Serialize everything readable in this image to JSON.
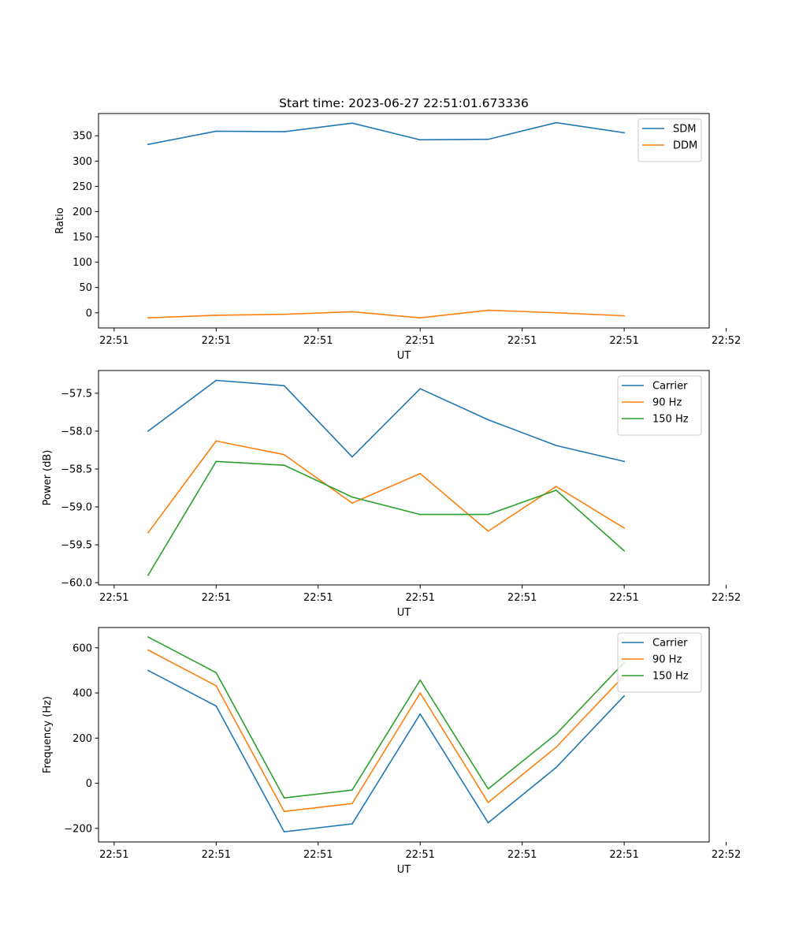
{
  "figure": {
    "title": "Start time: 2023-06-27 22:51:01.673336"
  },
  "chart_data": [
    {
      "type": "line",
      "title": "Start time: 2023-06-27 22:51:01.673336",
      "xlabel": "UT",
      "ylabel": "Ratio",
      "x": [
        1,
        2,
        3,
        4,
        5,
        6,
        7,
        8
      ],
      "xlim": [
        0.27,
        9.25
      ],
      "x_ticks": [
        0.5,
        2.0,
        3.5,
        5.0,
        6.5,
        8.0,
        9.5
      ],
      "x_tick_labels": [
        "22:51",
        "22:51",
        "22:51",
        "22:51",
        "22:51",
        "22:51",
        "22:52"
      ],
      "ylim": [
        -30,
        394
      ],
      "y_ticks": [
        0,
        50,
        100,
        150,
        200,
        250,
        300,
        350
      ],
      "y_tick_labels": [
        "0",
        "50",
        "100",
        "150",
        "200",
        "250",
        "300",
        "350"
      ],
      "legend": "upper right",
      "series": [
        {
          "name": "SDM",
          "color": "#1f77b4",
          "values": [
            333,
            359,
            358,
            375,
            342,
            343,
            376,
            356
          ]
        },
        {
          "name": "DDM",
          "color": "#ff7f0e",
          "values": [
            -10,
            -5,
            -3,
            2,
            -10,
            5,
            0,
            -6
          ]
        }
      ]
    },
    {
      "type": "line",
      "xlabel": "UT",
      "ylabel": "Power (dB)",
      "x": [
        1,
        2,
        3,
        4,
        5,
        6,
        7,
        8
      ],
      "xlim": [
        0.27,
        9.25
      ],
      "x_ticks": [
        0.5,
        2.0,
        3.5,
        5.0,
        6.5,
        8.0,
        9.5
      ],
      "x_tick_labels": [
        "22:51",
        "22:51",
        "22:51",
        "22:51",
        "22:51",
        "22:51",
        "22:52"
      ],
      "ylim": [
        -60.03,
        -57.2
      ],
      "y_ticks": [
        -60.0,
        -59.5,
        -59.0,
        -58.5,
        -58.0,
        -57.5
      ],
      "y_tick_labels": [
        "−60.0",
        "−59.5",
        "−59.0",
        "−58.5",
        "−58.0",
        "−57.5"
      ],
      "legend": "upper right",
      "series": [
        {
          "name": "Carrier",
          "color": "#1f77b4",
          "values": [
            -58.0,
            -57.33,
            -57.4,
            -58.34,
            -57.44,
            -57.85,
            -58.19,
            -58.4
          ]
        },
        {
          "name": "90 Hz",
          "color": "#ff7f0e",
          "values": [
            -59.34,
            -58.13,
            -58.31,
            -58.95,
            -58.56,
            -59.32,
            -58.73,
            -59.28
          ]
        },
        {
          "name": "150 Hz",
          "color": "#2ca02c",
          "values": [
            -59.9,
            -58.4,
            -58.45,
            -58.87,
            -59.1,
            -59.1,
            -58.78,
            -59.58
          ]
        }
      ]
    },
    {
      "type": "line",
      "xlabel": "UT",
      "ylabel": "Frequency (Hz)",
      "x": [
        1,
        2,
        3,
        4,
        5,
        6,
        7,
        8
      ],
      "xlim": [
        0.27,
        9.25
      ],
      "x_ticks": [
        0.5,
        2.0,
        3.5,
        5.0,
        6.5,
        8.0,
        9.5
      ],
      "x_tick_labels": [
        "22:51",
        "22:51",
        "22:51",
        "22:51",
        "22:51",
        "22:51",
        "22:52"
      ],
      "ylim": [
        -260,
        690
      ],
      "y_ticks": [
        -200,
        0,
        200,
        400,
        600
      ],
      "y_tick_labels": [
        "−200",
        "0",
        "200",
        "400",
        "600"
      ],
      "legend": "upper right",
      "series": [
        {
          "name": "Carrier",
          "color": "#1f77b4",
          "values": [
            500,
            342,
            -215,
            -180,
            307,
            -175,
            70,
            387
          ]
        },
        {
          "name": "90 Hz",
          "color": "#ff7f0e",
          "values": [
            590,
            432,
            -125,
            -90,
            400,
            -85,
            160,
            477
          ]
        },
        {
          "name": "150 Hz",
          "color": "#2ca02c",
          "values": [
            648,
            490,
            -65,
            -30,
            457,
            -25,
            218,
            535
          ]
        }
      ]
    }
  ]
}
